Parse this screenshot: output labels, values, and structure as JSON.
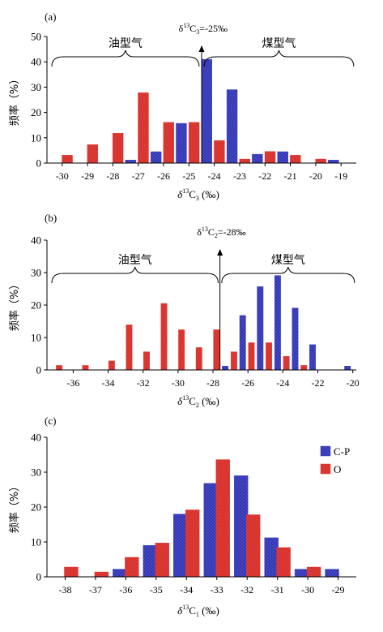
{
  "legend": [
    {
      "label": "C-P",
      "color": "#3b3fbf"
    },
    {
      "label": "O",
      "color": "#e23b36"
    }
  ],
  "chart_data": [
    {
      "id": "a",
      "type": "bar",
      "panel_label": "(a)",
      "xlabel_main": "δ",
      "xlabel_sup": "13",
      "xlabel_rest": "C",
      "xlabel_sub": "3",
      "xlabel_unit": " (‰)",
      "ylabel": "频率（%）",
      "ylim": [
        0,
        50
      ],
      "yticks": [
        0,
        10,
        20,
        30,
        40,
        50
      ],
      "xlim": [
        -30.6,
        -18.4
      ],
      "xticks": [
        -30,
        -29,
        -28,
        -27,
        -26,
        -25,
        -24,
        -23,
        -22,
        -21,
        -20,
        -19
      ],
      "divider": {
        "x": -24.5,
        "label_main": "δ",
        "label_sup": "13",
        "label_rest": "C",
        "label_sub": "3",
        "label_value": "=-25‰"
      },
      "brackets": [
        {
          "label": "油型气",
          "from": -30.6,
          "to": -24.6
        },
        {
          "label": "煤型气",
          "from": -24.4,
          "to": -18.5
        }
      ],
      "series": [
        {
          "name": "C-P",
          "color": "#3b3fbf",
          "x": [
            -27.3,
            -26.3,
            -25.3,
            -24.3,
            -23.3,
            -22.3,
            -21.3,
            -19.3
          ],
          "values": [
            1.2,
            4.5,
            15.7,
            41,
            29,
            3.5,
            4.5,
            1.2
          ]
        },
        {
          "name": "O",
          "color": "#e23b36",
          "x": [
            -29.8,
            -28.8,
            -27.8,
            -26.8,
            -25.8,
            -24.8,
            -23.8,
            -22.8,
            -21.8,
            -20.8,
            -19.8
          ],
          "values": [
            3.1,
            7.3,
            11.8,
            27.8,
            16.1,
            16.1,
            8.9,
            1.6,
            4.6,
            3.1,
            1.6
          ]
        }
      ]
    },
    {
      "id": "b",
      "type": "bar",
      "panel_label": "(b)",
      "xlabel_main": "δ",
      "xlabel_sup": "13",
      "xlabel_rest": "C",
      "xlabel_sub": "2",
      "xlabel_unit": " (‰)",
      "ylabel": "频率（%）",
      "ylim": [
        0,
        40
      ],
      "yticks": [
        0,
        10,
        20,
        30,
        40
      ],
      "xlim": [
        -37.5,
        -19.8
      ],
      "xticks": [
        -36,
        -34,
        -32,
        -30,
        -28,
        -26,
        -24,
        -22,
        -20
      ],
      "divider": {
        "x": -27.6,
        "label_main": "δ",
        "label_sup": "13",
        "label_rest": "C",
        "label_sub": "2",
        "label_value": "=-28‰"
      },
      "brackets": [
        {
          "label": "油型气",
          "from": -37.4,
          "to": -27.7
        },
        {
          "label": "煤型气",
          "from": -27.5,
          "to": -19.9
        }
      ],
      "series": [
        {
          "name": "C-P",
          "color": "#3b3fbf",
          "x": [
            -27.3,
            -26.3,
            -25.3,
            -24.3,
            -23.3,
            -22.3,
            -20.3
          ],
          "values": [
            1.2,
            16.8,
            25.7,
            29.1,
            19.1,
            7.8,
            1.2
          ]
        },
        {
          "name": "O",
          "color": "#e23b36",
          "x": [
            -36.8,
            -35.3,
            -33.8,
            -32.8,
            -31.8,
            -30.8,
            -29.8,
            -28.8,
            -27.8,
            -26.8,
            -25.8,
            -24.8,
            -23.8,
            -22.8
          ],
          "values": [
            1.4,
            1.4,
            2.8,
            13.9,
            5.6,
            20.5,
            12.4,
            6.9,
            12.4,
            5.6,
            8.4,
            8.4,
            4.2,
            1.4
          ]
        }
      ]
    },
    {
      "id": "c",
      "type": "bar",
      "panel_label": "(c)",
      "xlabel_main": "δ",
      "xlabel_sup": "13",
      "xlabel_rest": "C",
      "xlabel_sub": "1",
      "xlabel_unit": " (‰)",
      "ylabel": "频率（%）",
      "ylim": [
        0,
        40
      ],
      "yticks": [
        0,
        10,
        20,
        30,
        40
      ],
      "xlim": [
        -38.6,
        -28.4
      ],
      "xticks": [
        -38,
        -37,
        -36,
        -35,
        -34,
        -33,
        -32,
        -31,
        -30,
        -29
      ],
      "divider": null,
      "brackets": [],
      "series": [
        {
          "name": "C-P",
          "color": "#3b3fbf",
          "x": [
            -36.2,
            -35.2,
            -34.2,
            -33.2,
            -32.2,
            -31.2,
            -30.2,
            -29.2
          ],
          "values": [
            2.2,
            9.0,
            18.0,
            26.8,
            29.0,
            11.2,
            2.2,
            2.2
          ]
        },
        {
          "name": "O",
          "color": "#e23b36",
          "x": [
            -37.8,
            -36.8,
            -35.8,
            -34.8,
            -33.8,
            -32.8,
            -31.8,
            -30.8,
            -29.8
          ],
          "values": [
            2.8,
            1.4,
            5.6,
            9.7,
            19.2,
            33.6,
            17.8,
            8.4,
            2.8
          ]
        }
      ]
    }
  ]
}
